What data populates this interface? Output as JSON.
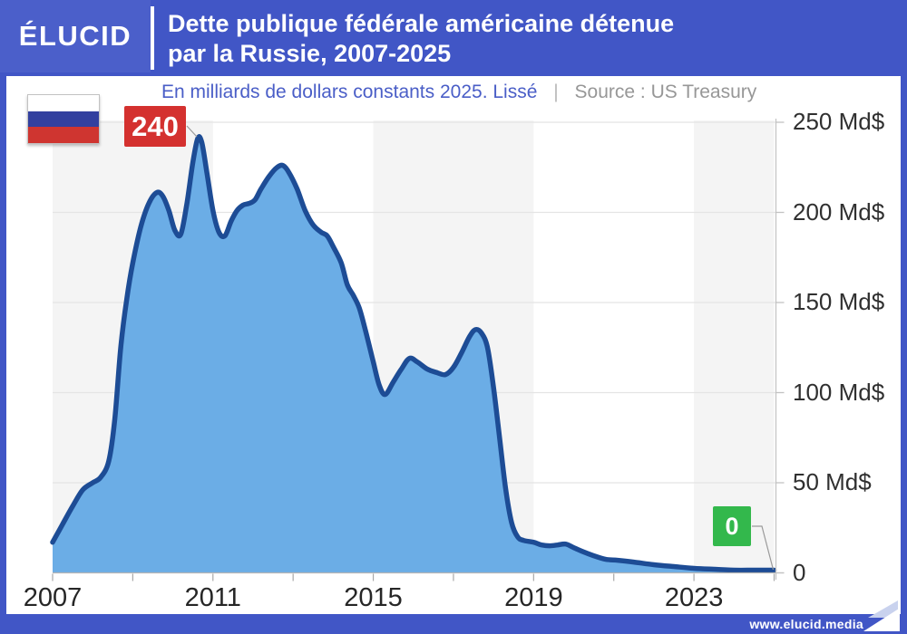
{
  "header": {
    "logo_text": "ÉLUCID",
    "title_line1": "Dette publique fédérale américaine détenue",
    "title_line2": "par la Russie, 2007-2025"
  },
  "subtitle": {
    "note": "En milliards de dollars constants 2025. Lissé",
    "separator": "|",
    "source": "Source : US Treasury"
  },
  "annotations": {
    "peak_label": "240",
    "end_label": "0"
  },
  "footer": {
    "website": "www.elucid.media"
  },
  "colors": {
    "header_blue": "#4156C6",
    "logo_blue": "#4B5FCA",
    "area_fill": "#6BADE6",
    "line_navy": "#1D4C95",
    "peak_badge_red": "#D4312F",
    "end_badge_green": "#33B84C",
    "band_gray": "#F4F4F4",
    "gridline": "#E4E4E4",
    "axis_gray": "#B5B5B5",
    "flag_blue": "#32409F",
    "flag_red": "#CF3530"
  },
  "chart_data": {
    "type": "area",
    "title": "Dette publique fédérale américaine détenue par la Russie, 2007-2025",
    "unit": "Milliards de dollars constants 2025 (Md$), lissé",
    "source": "US Treasury",
    "xlim": [
      2007,
      2025
    ],
    "ylim": [
      0,
      250
    ],
    "grid": true,
    "legend": "none",
    "y_tick_values": [
      250,
      200,
      150,
      100,
      50,
      0
    ],
    "y_tick_labels": [
      "250 Md$",
      "200 Md$",
      "150 Md$",
      "100 Md$",
      "50 Md$",
      "0"
    ],
    "x_label_years": [
      2007,
      2011,
      2015,
      2019,
      2023
    ],
    "x_label_texts": [
      "2007",
      "2011",
      "2015",
      "2019",
      "2023"
    ],
    "x_minor_tick_step_years": 2,
    "shaded_band_year_ranges": [
      [
        2007,
        2011
      ],
      [
        2015,
        2019
      ],
      [
        2023,
        2025
      ]
    ],
    "annotated_points": [
      {
        "label": "240",
        "year": 2010.6,
        "value": 241
      },
      {
        "label": "0",
        "year": 2025,
        "value": 1.5
      }
    ],
    "points": [
      [
        2007.0,
        17
      ],
      [
        2007.25,
        27
      ],
      [
        2007.5,
        37
      ],
      [
        2007.75,
        46
      ],
      [
        2008.0,
        50
      ],
      [
        2008.2,
        53
      ],
      [
        2008.4,
        62
      ],
      [
        2008.55,
        85
      ],
      [
        2008.7,
        125
      ],
      [
        2008.85,
        152
      ],
      [
        2009.0,
        172
      ],
      [
        2009.2,
        192
      ],
      [
        2009.4,
        205
      ],
      [
        2009.6,
        211
      ],
      [
        2009.75,
        209
      ],
      [
        2009.9,
        201
      ],
      [
        2010.05,
        190
      ],
      [
        2010.2,
        188
      ],
      [
        2010.35,
        205
      ],
      [
        2010.5,
        228
      ],
      [
        2010.62,
        241
      ],
      [
        2010.72,
        239
      ],
      [
        2010.85,
        222
      ],
      [
        2011.0,
        201
      ],
      [
        2011.15,
        189
      ],
      [
        2011.3,
        187
      ],
      [
        2011.45,
        195
      ],
      [
        2011.6,
        201
      ],
      [
        2011.75,
        204
      ],
      [
        2011.9,
        205
      ],
      [
        2012.05,
        207
      ],
      [
        2012.2,
        213
      ],
      [
        2012.4,
        220
      ],
      [
        2012.6,
        225
      ],
      [
        2012.75,
        226
      ],
      [
        2012.9,
        222
      ],
      [
        2013.1,
        213
      ],
      [
        2013.3,
        201
      ],
      [
        2013.5,
        193
      ],
      [
        2013.7,
        189
      ],
      [
        2013.85,
        187
      ],
      [
        2014.0,
        181
      ],
      [
        2014.2,
        172
      ],
      [
        2014.35,
        160
      ],
      [
        2014.5,
        154
      ],
      [
        2014.65,
        147
      ],
      [
        2014.8,
        135
      ],
      [
        2015.0,
        117
      ],
      [
        2015.15,
        104
      ],
      [
        2015.3,
        99
      ],
      [
        2015.5,
        106
      ],
      [
        2015.7,
        113
      ],
      [
        2015.9,
        119
      ],
      [
        2016.1,
        117
      ],
      [
        2016.35,
        113
      ],
      [
        2016.6,
        111
      ],
      [
        2016.8,
        110
      ],
      [
        2017.0,
        114
      ],
      [
        2017.2,
        122
      ],
      [
        2017.4,
        131
      ],
      [
        2017.55,
        135
      ],
      [
        2017.7,
        133
      ],
      [
        2017.85,
        125
      ],
      [
        2018.0,
        103
      ],
      [
        2018.15,
        75
      ],
      [
        2018.3,
        47
      ],
      [
        2018.45,
        28
      ],
      [
        2018.6,
        20
      ],
      [
        2018.75,
        18
      ],
      [
        2019.0,
        17
      ],
      [
        2019.2,
        15.5
      ],
      [
        2019.4,
        15
      ],
      [
        2019.6,
        15.5
      ],
      [
        2019.8,
        16
      ],
      [
        2020.0,
        14
      ],
      [
        2020.2,
        12
      ],
      [
        2020.5,
        9.5
      ],
      [
        2020.8,
        7.5
      ],
      [
        2021.1,
        7
      ],
      [
        2021.5,
        6
      ],
      [
        2022.0,
        4.5
      ],
      [
        2022.5,
        3.5
      ],
      [
        2023.0,
        2.5
      ],
      [
        2023.5,
        2
      ],
      [
        2024.0,
        1.5
      ],
      [
        2024.5,
        1.5
      ],
      [
        2025.0,
        1.5
      ]
    ]
  }
}
